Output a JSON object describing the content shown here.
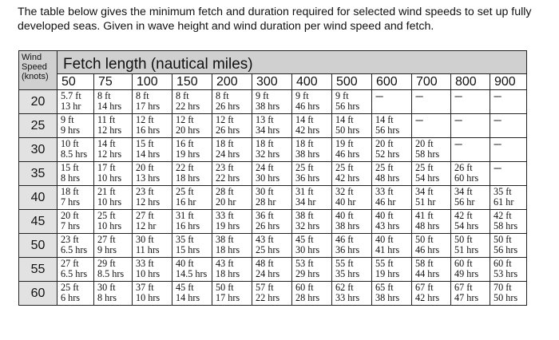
{
  "intro_text": "The table below gives the minimum fetch and duration required for selected wind speeds to set up fully developed seas. Given in wave height and wind duration per wind speed and fetch.",
  "table": {
    "wind_speed_header": "Wind Speed (knots)",
    "fetch_header": "Fetch length (nautical miles)",
    "fetches": [
      "50",
      "75",
      "100",
      "150",
      "200",
      "300",
      "400",
      "500",
      "600",
      "700",
      "800",
      "900"
    ],
    "rows": [
      {
        "speed": "20",
        "cells": [
          [
            "5.7 ft",
            "13 hr"
          ],
          [
            "8 ft",
            "14 hrs"
          ],
          [
            "8 ft",
            "17 hrs"
          ],
          [
            "8 ft",
            "22 hrs"
          ],
          [
            "8 ft",
            "26 hrs"
          ],
          [
            "9 ft",
            "38 hrs"
          ],
          [
            "9 ft",
            "46 hrs"
          ],
          [
            "9 ft",
            "56 hrs"
          ],
          [
            "---",
            ""
          ],
          [
            "---",
            ""
          ],
          [
            "---",
            ""
          ],
          [
            "---",
            ""
          ]
        ]
      },
      {
        "speed": "25",
        "cells": [
          [
            "9 ft",
            "9 hrs"
          ],
          [
            "11 ft",
            "12 hrs"
          ],
          [
            "12 ft",
            "16 hrs"
          ],
          [
            "12 ft",
            "20 hrs"
          ],
          [
            "12 ft",
            "26 hrs"
          ],
          [
            "13 ft",
            "34 hrs"
          ],
          [
            "14 ft",
            "42 hrs"
          ],
          [
            "14 ft",
            "50 hrs"
          ],
          [
            "14 ft",
            "56 hrs"
          ],
          [
            "---",
            ""
          ],
          [
            "---",
            ""
          ],
          [
            "---",
            ""
          ]
        ]
      },
      {
        "speed": "30",
        "cells": [
          [
            "10 ft",
            "8.5 hrs"
          ],
          [
            "14 ft",
            "12 hrs"
          ],
          [
            "15 ft",
            "14 hrs"
          ],
          [
            "16 ft",
            "19 hrs"
          ],
          [
            "18 ft",
            "24 hrs"
          ],
          [
            "18 ft",
            "32 hrs"
          ],
          [
            "18 ft",
            "38 hrs"
          ],
          [
            "19 ft",
            "46 hrs"
          ],
          [
            "20 ft",
            "52 hrs"
          ],
          [
            "20 ft",
            "58 hrs"
          ],
          [
            "---",
            ""
          ],
          [
            "---",
            ""
          ]
        ]
      },
      {
        "speed": "35",
        "cells": [
          [
            "15 ft",
            "8 hrs"
          ],
          [
            "17 ft",
            "10 hrs"
          ],
          [
            "20 ft",
            "13 hrs"
          ],
          [
            "22 ft",
            "18 hrs"
          ],
          [
            "23 ft",
            "22 hrs"
          ],
          [
            "24 ft",
            "30 hrs"
          ],
          [
            "25 ft",
            "36 hrs"
          ],
          [
            "25 ft",
            "42 hrs"
          ],
          [
            "25 ft",
            "48 hrs"
          ],
          [
            "25 ft",
            "54 hrs"
          ],
          [
            "26 ft",
            "60 hrs"
          ],
          [
            "---",
            ""
          ]
        ]
      },
      {
        "speed": "40",
        "cells": [
          [
            "18 ft",
            "7 hrs"
          ],
          [
            "21 ft",
            "10 hrs"
          ],
          [
            "23 ft",
            "12 hrs"
          ],
          [
            "25 ft",
            "16 hr"
          ],
          [
            "28 ft",
            "20 hr"
          ],
          [
            "30 ft",
            "28 hr"
          ],
          [
            "31 ft",
            "34 hr"
          ],
          [
            "32 ft",
            "40 hr"
          ],
          [
            "33 ft",
            "46 hr"
          ],
          [
            "34 ft",
            "51 hr"
          ],
          [
            "34 ft",
            "56 hr"
          ],
          [
            "35 ft",
            "61 hr"
          ]
        ]
      },
      {
        "speed": "45",
        "cells": [
          [
            "20 ft",
            "7 hrs"
          ],
          [
            "25 ft",
            "10 hrs"
          ],
          [
            "27 ft",
            "12 hr"
          ],
          [
            "31 ft",
            "16 hrs"
          ],
          [
            "33 ft",
            "19 hrs"
          ],
          [
            "36 ft",
            "26 hrs"
          ],
          [
            "38 ft",
            "32 hrs"
          ],
          [
            "40 ft",
            "38 hrs"
          ],
          [
            "40 ft",
            "43 hrs"
          ],
          [
            "41 ft",
            "48 hrs"
          ],
          [
            "42 ft",
            "54 hrs"
          ],
          [
            "42 ft",
            "58 hrs"
          ]
        ]
      },
      {
        "speed": "50",
        "cells": [
          [
            "23 ft",
            "6.5 hrs"
          ],
          [
            "27 ft",
            "9 hrs"
          ],
          [
            "30 ft",
            "11 hrs"
          ],
          [
            "35 ft",
            "15 hrs"
          ],
          [
            "38 ft",
            "18 hrs"
          ],
          [
            "43 ft",
            "25 hrs"
          ],
          [
            "45 ft",
            "30 hrs"
          ],
          [
            "46 ft",
            "36 hrs"
          ],
          [
            "40 ft",
            "41 hrs"
          ],
          [
            "50 ft",
            "46 hrs"
          ],
          [
            "50 ft",
            "51 hrs"
          ],
          [
            "50 ft",
            "56 hrs"
          ]
        ]
      },
      {
        "speed": "55",
        "cells": [
          [
            "27 ft",
            "6.5 hrs"
          ],
          [
            "29 ft",
            "8.5 hrs"
          ],
          [
            "33 ft",
            "10 hrs"
          ],
          [
            "40 ft",
            "14.5 hrs"
          ],
          [
            "43 ft",
            "18 hrs"
          ],
          [
            "48 ft",
            "24 hrs"
          ],
          [
            "53 ft",
            "29 hrs"
          ],
          [
            "55 ft",
            "35 hrs"
          ],
          [
            "55 ft",
            "19 hrs"
          ],
          [
            "58 ft",
            "44 hrs"
          ],
          [
            "60 ft",
            "49 hrs"
          ],
          [
            "60 ft",
            "53 hrs"
          ]
        ]
      },
      {
        "speed": "60",
        "cells": [
          [
            "25 ft",
            "6 hrs"
          ],
          [
            "30 ft",
            "8 hrs"
          ],
          [
            "37 ft",
            "10 hrs"
          ],
          [
            "45 ft",
            "14 hrs"
          ],
          [
            "50 ft",
            "17 hrs"
          ],
          [
            "57 ft",
            "22 hrs"
          ],
          [
            "60 ft",
            "28 hrs"
          ],
          [
            "62 ft",
            "33 hrs"
          ],
          [
            "65 ft",
            "38 hrs"
          ],
          [
            "67 ft",
            "42 hrs"
          ],
          [
            "67 ft",
            "47 hrs"
          ],
          [
            "70 ft",
            "50 hrs"
          ]
        ]
      }
    ]
  }
}
